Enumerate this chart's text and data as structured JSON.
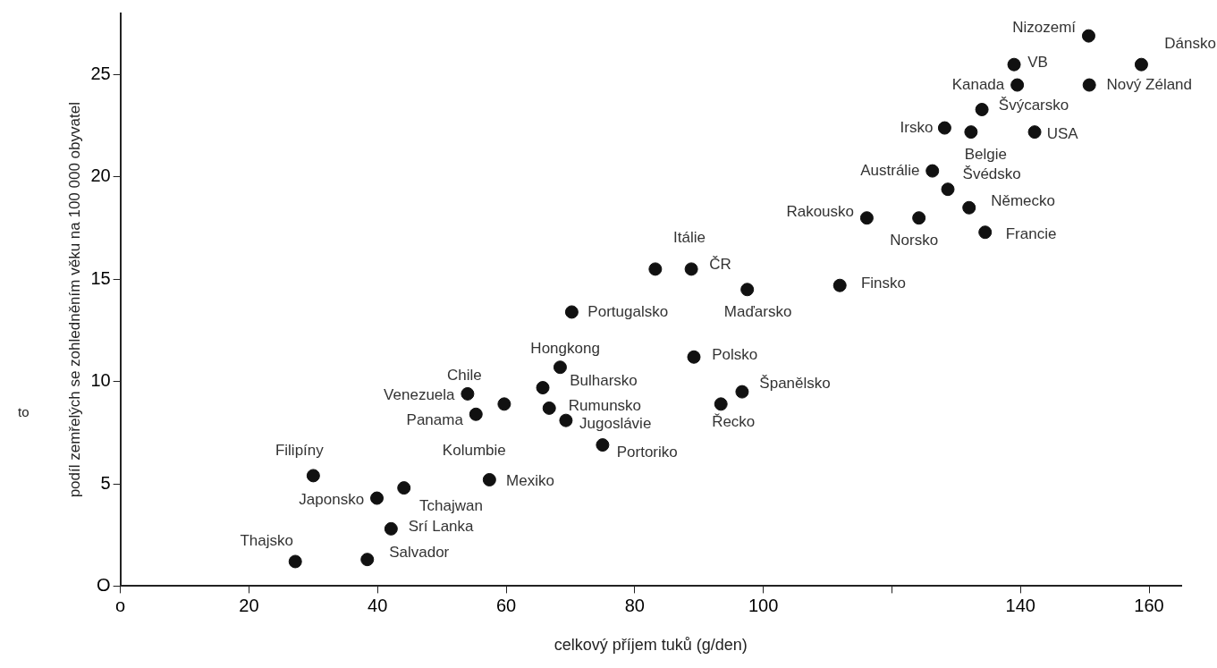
{
  "chart_data": {
    "type": "scatter",
    "xlabel": "celkový příjem tuků (g/den)",
    "ylabel": "podíl zemřelých se zohledněním věku na 100 000 obyvatel",
    "xlim": [
      0,
      165
    ],
    "ylim": [
      0,
      28
    ],
    "xticks": [
      {
        "value": 0,
        "label": "o"
      },
      20,
      40,
      60,
      80,
      100,
      {
        "value": 120,
        "label": null
      },
      140,
      160
    ],
    "yticks": [
      {
        "value": 0,
        "label": "O"
      },
      5,
      10,
      15,
      20,
      25
    ],
    "grid": false,
    "legend": false,
    "marker": "circle",
    "series": [
      {
        "color": "#111111",
        "x": [
          27.2,
          38.4,
          42.1,
          39.9,
          44.1,
          30,
          57.4,
          55.3,
          54,
          59.7,
          68.4,
          65.7,
          66.7,
          69.3,
          75,
          70.2,
          83.2,
          88.8,
          97.5,
          111.9,
          89.2,
          96.7,
          93.4,
          116.1,
          124.2,
          126.3,
          128.7,
          132,
          134.5,
          132.3,
          128.2,
          134,
          142.2,
          139.5,
          139,
          150.6,
          158.8,
          150.7
        ],
        "values": [
          1.2,
          1.3,
          2.8,
          4.3,
          4.8,
          5.4,
          5.2,
          8.4,
          9.4,
          8.9,
          10.7,
          9.7,
          8.7,
          8.1,
          6.9,
          13.4,
          15.5,
          15.5,
          14.5,
          14.7,
          11.2,
          9.5,
          8.9,
          18,
          18,
          20.3,
          19.4,
          18.5,
          17.3,
          22.2,
          22.4,
          23.3,
          22.2,
          24.5,
          25.5,
          26.9,
          25.5,
          24.5
        ]
      }
    ],
    "annotations": [
      {
        "text": "Nizozemí",
        "x": 150.6,
        "y": 26.9
      },
      {
        "text": "Dánsko",
        "x": 158.8,
        "y": 25.5
      },
      {
        "text": "VB",
        "x": 139,
        "y": 25.5
      },
      {
        "text": "Kanada",
        "x": 139.5,
        "y": 24.5
      },
      {
        "text": "Nový Zéland",
        "x": 150.7,
        "y": 24.5
      },
      {
        "text": "Švýcarsko",
        "x": 134,
        "y": 23.3
      },
      {
        "text": "Irsko",
        "x": 128.2,
        "y": 22.4
      },
      {
        "text": "USA",
        "x": 142.2,
        "y": 22.2
      },
      {
        "text": "Belgie",
        "x": 132.3,
        "y": 22.2
      },
      {
        "text": "Austrálie",
        "x": 126.3,
        "y": 20.3
      },
      {
        "text": "Švédsko",
        "x": 128.7,
        "y": 19.4
      },
      {
        "text": "Rakousko",
        "x": 116.1,
        "y": 18
      },
      {
        "text": "Německo",
        "x": 132,
        "y": 18.5
      },
      {
        "text": "Norsko",
        "x": 124.2,
        "y": 18
      },
      {
        "text": "Francie",
        "x": 134.5,
        "y": 17.3
      },
      {
        "text": "Itálie",
        "x": 83.2,
        "y": 15.5
      },
      {
        "text": "ČR",
        "x": 88.8,
        "y": 15.5
      },
      {
        "text": "Finsko",
        "x": 111.9,
        "y": 14.7
      },
      {
        "text": "Maďarsko",
        "x": 97.5,
        "y": 14.5
      },
      {
        "text": "Portugalsko",
        "x": 70.2,
        "y": 13.4
      },
      {
        "text": "Hongkong",
        "x": 68.4,
        "y": 10.7
      },
      {
        "text": "Polsko",
        "x": 89.2,
        "y": 11.2
      },
      {
        "text": "Bulharsko",
        "x": 65.7,
        "y": 9.7
      },
      {
        "text": "Chile",
        "x": 59.7,
        "y": 8.9
      },
      {
        "text": "Venezuela",
        "x": 54,
        "y": 9.4
      },
      {
        "text": "Španělsko",
        "x": 96.7,
        "y": 9.5
      },
      {
        "text": "Rumunsko",
        "x": 66.7,
        "y": 8.7
      },
      {
        "text": "Panama",
        "x": 55.3,
        "y": 8.4
      },
      {
        "text": "Řecko",
        "x": 93.4,
        "y": 8.9
      },
      {
        "text": "Jugoslávie",
        "x": 69.3,
        "y": 8.1
      },
      {
        "text": "Kolumbie",
        "x": 57.4,
        "y": 5.2
      },
      {
        "text": "Portoriko",
        "x": 75,
        "y": 6.9
      },
      {
        "text": "Filipíny",
        "x": 30,
        "y": 5.4
      },
      {
        "text": "Mexiko",
        "x": 57.4,
        "y": 5.2
      },
      {
        "text": "Japonsko",
        "x": 39.9,
        "y": 4.3
      },
      {
        "text": "Tchajwan",
        "x": 44.1,
        "y": 4.8
      },
      {
        "text": "Srí Lanka",
        "x": 42.1,
        "y": 2.8
      },
      {
        "text": "Thajsko",
        "x": 27.2,
        "y": 1.2
      },
      {
        "text": "Salvador",
        "x": 38.4,
        "y": 1.3
      },
      "to"
    ]
  }
}
